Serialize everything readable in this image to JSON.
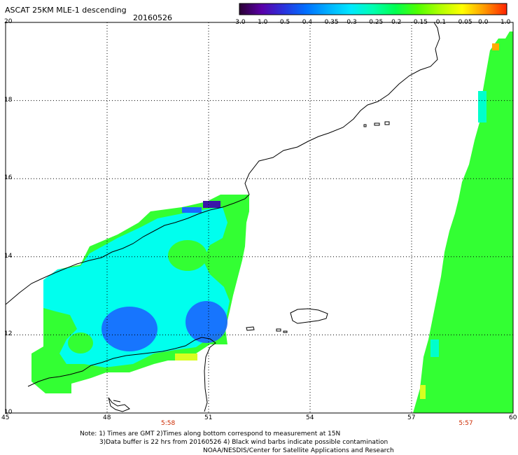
{
  "header": {
    "title": "ASCAT 25KM MLE-1 descending",
    "date": "20160526"
  },
  "colorbar": {
    "ticks": [
      "-3.0",
      "-1.0",
      "-0.5",
      "-0.4",
      "-0.35",
      "-0.3",
      "-0.25",
      "-0.2",
      "-0.15",
      "-0.1",
      "-0.05",
      "0.0",
      "1.0"
    ],
    "colors": [
      "#2a0033",
      "#5a00a8",
      "#2a33dd",
      "#0070ff",
      "#00b0ff",
      "#00e8ff",
      "#00ffb0",
      "#00ff50",
      "#50ff00",
      "#b0ff00",
      "#ffff00",
      "#ff9900",
      "#ff2200"
    ]
  },
  "map": {
    "lat_labels": [
      "20",
      "18",
      "16",
      "14",
      "12",
      "10"
    ],
    "lon_labels": [
      "45",
      "48",
      "51",
      "54",
      "57",
      "60"
    ],
    "lat_range": [
      10,
      20
    ],
    "lon_range": [
      45,
      60
    ],
    "pass_times": [
      {
        "label": "5:58",
        "lon": 49.8
      },
      {
        "label": "5:57",
        "lon": 58.6
      }
    ]
  },
  "footer": {
    "line1": "Note: 1) Times are GMT 2)Times along bottom correspond to measurement at 15N",
    "line2": "3)Data buffer is 22 hrs from 20160526 4) Black wind barbs indicate possible contamination",
    "line3": "NOAA/NESDIS/Center for Satellite Applications and Research"
  },
  "colors": {
    "swath_cyan": "#00ffee",
    "swath_green": "#33ff33",
    "swath_blue": "#1a66ff",
    "coast": "#000000"
  }
}
